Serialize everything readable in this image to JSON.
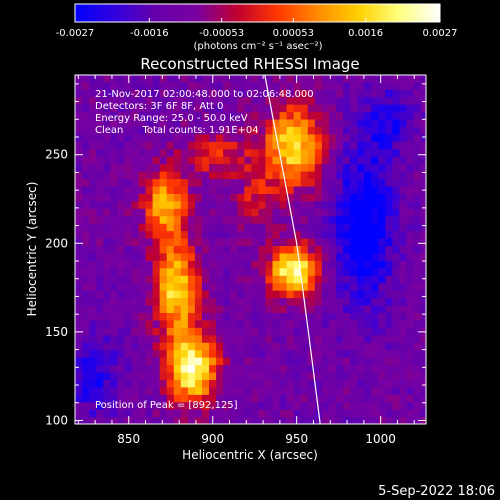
{
  "chart_data": {
    "type": "heatmap",
    "title": "Reconstructed RHESSI Image",
    "xlabel": "Heliocentric X (arcsec)",
    "ylabel": "Heliocentric Y (arcsec)",
    "xlim": [
      818,
      1027
    ],
    "ylim": [
      98,
      295
    ],
    "xticks": [
      850,
      900,
      950,
      1000
    ],
    "yticks": [
      100,
      150,
      200,
      250
    ],
    "colorbar": {
      "range": [
        -0.0027,
        0.0027
      ],
      "ticks": [
        "-0.0027",
        "-0.0016",
        "-0.00053",
        "0.00053",
        "0.0016",
        "0.0027"
      ],
      "unit_label": "(photons cm⁻² s⁻¹ asec⁻²)",
      "colormap": [
        "#0000ff",
        "#3300dd",
        "#6600aa",
        "#7a00a0",
        "#c00030",
        "#ff3800",
        "#ff8c00",
        "#ffd000",
        "#ffff80",
        "#ffffff"
      ]
    },
    "annotations": [
      "21-Nov-2017 02:00:48.000 to 02:06:48.000",
      "Detectors: 3F 6F 8F, Att 0",
      "Energy Range: 25.0 - 50.0 keV",
      "Clean      Total counts: 1.91E+04"
    ],
    "peak_label": "Position of Peak = [892,125]",
    "peak": [
      892,
      125
    ],
    "limb_curve": [
      [
        931,
        295
      ],
      [
        940,
        250
      ],
      [
        950,
        200
      ],
      [
        957,
        150
      ],
      [
        964,
        98
      ]
    ],
    "sources": [
      {
        "x": 888,
        "y": 130,
        "amp": 0.0025,
        "sx": 10,
        "sy": 14
      },
      {
        "x": 878,
        "y": 175,
        "amp": 0.002,
        "sx": 9,
        "sy": 18
      },
      {
        "x": 872,
        "y": 222,
        "amp": 0.0017,
        "sx": 9,
        "sy": 13
      },
      {
        "x": 902,
        "y": 250,
        "amp": 0.0009,
        "sx": 14,
        "sy": 9
      },
      {
        "x": 948,
        "y": 185,
        "amp": 0.0024,
        "sx": 10,
        "sy": 10
      },
      {
        "x": 948,
        "y": 255,
        "amp": 0.002,
        "sx": 12,
        "sy": 16
      },
      {
        "x": 925,
        "y": 228,
        "amp": 0.0007,
        "sx": 8,
        "sy": 12
      },
      {
        "x": 990,
        "y": 210,
        "amp": -0.002,
        "sx": 12,
        "sy": 30
      },
      {
        "x": 830,
        "y": 125,
        "amp": -0.0012,
        "sx": 10,
        "sy": 15
      },
      {
        "x": 1005,
        "y": 270,
        "amp": -0.0012,
        "sx": 10,
        "sy": 12
      }
    ],
    "background_level": -0.0012
  },
  "footer": {
    "date": "5-Sep-2022 18:06"
  }
}
